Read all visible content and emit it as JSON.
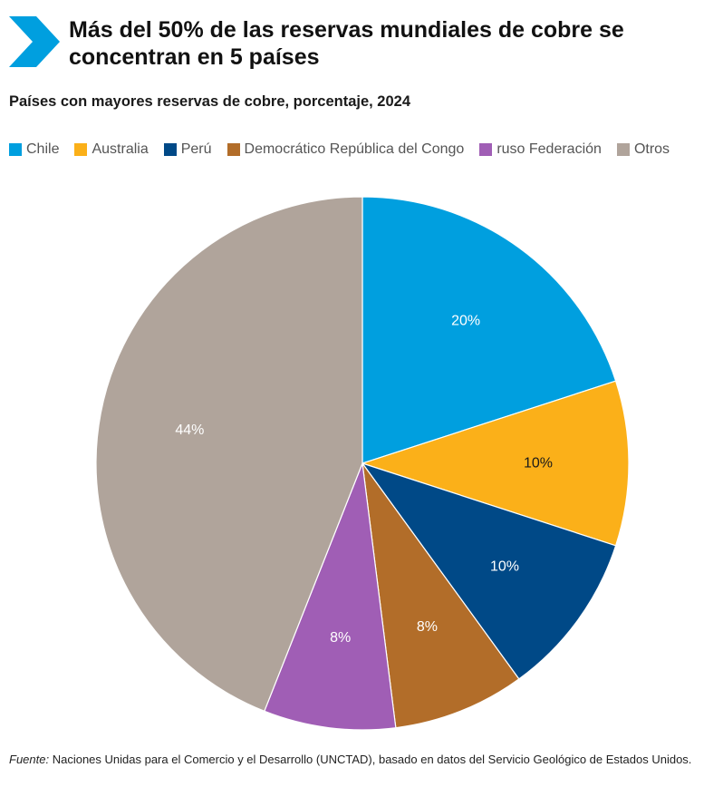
{
  "header": {
    "title": "Más del 50% de las reservas mundiales de cobre se concentran en 5 países"
  },
  "chart_data": {
    "type": "pie",
    "title": "Más del 50% de las reservas mundiales de cobre se concentran en 5 países",
    "subtitle": "Países con mayores reservas de cobre, porcentaje, 2024",
    "start_angle": "12 o'clock, clockwise",
    "categories": [
      "Chile",
      "Australia",
      "Perú",
      "Democrático República del Congo",
      "ruso Federación",
      "Otros"
    ],
    "values": [
      20,
      10,
      10,
      8,
      8,
      44
    ],
    "data_labels": [
      "20%",
      "10%",
      "10%",
      "8%",
      "8%",
      "44%"
    ],
    "colors": [
      "#009FDF",
      "#FBB019",
      "#004987",
      "#B26D29",
      "#A05EB5",
      "#B0A49B"
    ],
    "label_colors": [
      "#ffffff",
      "#1a1a1a",
      "#ffffff",
      "#ffffff",
      "#ffffff",
      "#ffffff"
    ],
    "legend_position": "top-left"
  },
  "source": {
    "prefix": "Fuente:",
    "text": " Naciones Unidas para el Comercio y el Desarrollo (UNCTAD), basado en datos del Servicio Geológico de Estados Unidos."
  },
  "colors": {
    "accent": "#009FDF"
  }
}
